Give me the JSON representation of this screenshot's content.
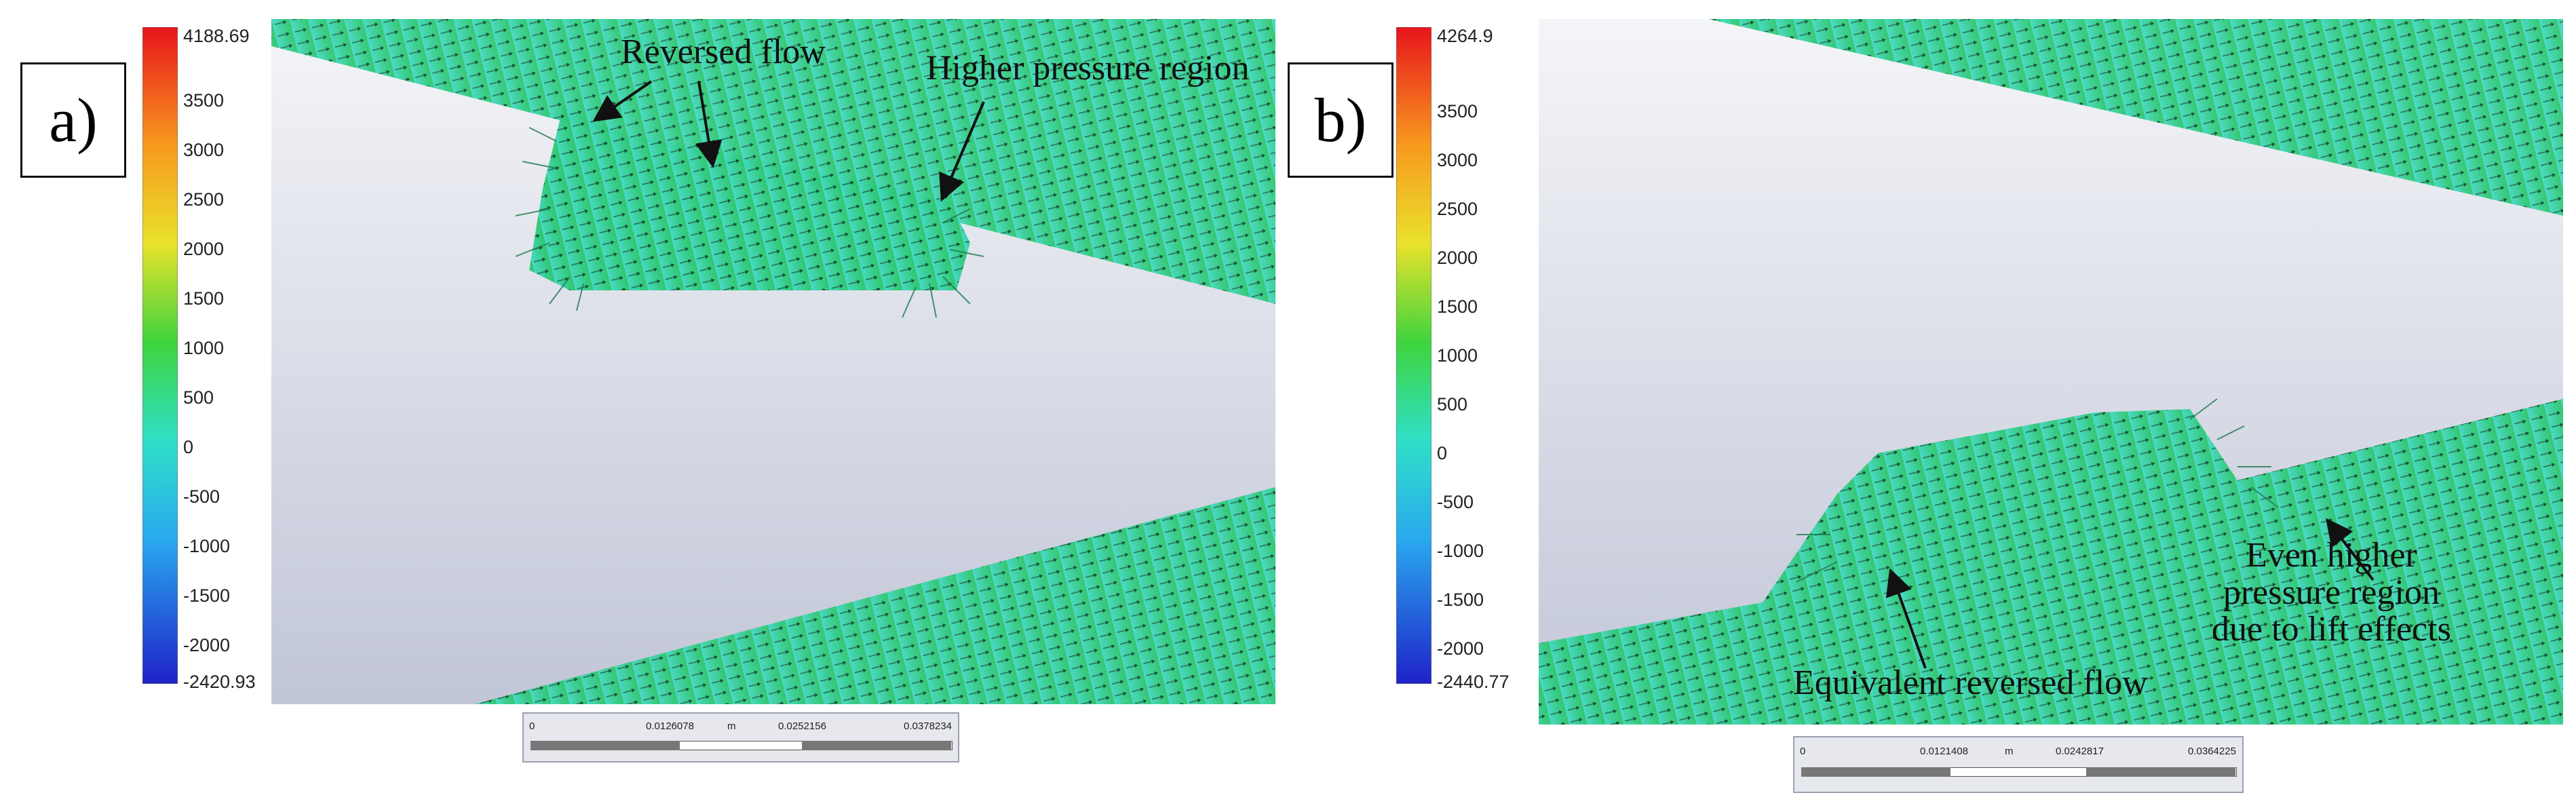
{
  "panel_a": {
    "label": "a)",
    "colorbar": {
      "max": "4188.69",
      "min": "-2420.93",
      "ticks": [
        "3500",
        "3000",
        "2500",
        "2000",
        "1500",
        "1000",
        "500",
        "0",
        "-500",
        "-1000",
        "-1500",
        "-2000"
      ]
    },
    "annotations": {
      "reversed_flow": "Reversed flow",
      "higher_pressure": "Higher pressure region"
    },
    "scale": {
      "labels": [
        "0",
        "0.0126078",
        "m",
        "0.0252156",
        "0.0378234"
      ]
    }
  },
  "panel_b": {
    "label": "b)",
    "colorbar": {
      "max": "4264.9",
      "min": "-2440.77",
      "ticks": [
        "3500",
        "3000",
        "2500",
        "2000",
        "1500",
        "1000",
        "500",
        "0",
        "-500",
        "-1000",
        "-1500",
        "-2000"
      ]
    },
    "annotations": {
      "equivalent_reversed_flow": "Equivalent reversed flow",
      "even_higher_line1": "Even higher",
      "even_higher_line2": "pressure region",
      "even_higher_line3": "due to lift effects"
    },
    "scale": {
      "labels": [
        "0",
        "0.0121408",
        "m",
        "0.0242817",
        "0.0364225"
      ]
    }
  },
  "colors": {
    "vector_field": "#36cf8f",
    "background_top": "#f2f3f6",
    "background_bottom": "#c3c8d8"
  }
}
